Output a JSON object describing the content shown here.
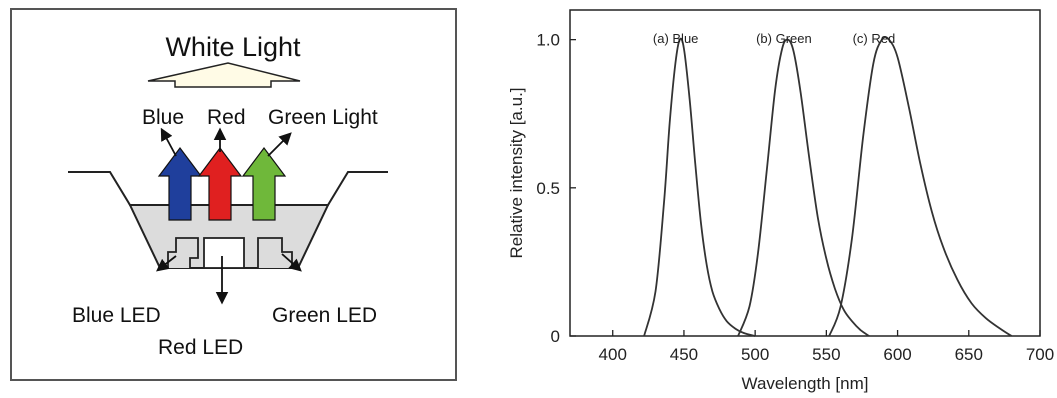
{
  "diagram": {
    "title": "White Light",
    "light_labels": [
      "Blue",
      "Red",
      "Green Light"
    ],
    "led_labels": {
      "blue": "Blue LED",
      "red": "Red LED",
      "green": "Green LED"
    },
    "colors": {
      "blue_arrow": "#1f3f9c",
      "red_arrow": "#e02020",
      "green_arrow": "#6fb83a",
      "white_arrow": "#fffbe6",
      "package_fill": "#dcdcdc",
      "panel_border": "#555555"
    }
  },
  "chart_data": {
    "type": "line",
    "title": "",
    "xlabel": "Wavelength [nm]",
    "ylabel": "Relative intensity [a.u.]",
    "xlim": [
      370,
      700
    ],
    "ylim": [
      0,
      1.1
    ],
    "xticks": [
      "400",
      "450",
      "500",
      "550",
      "600",
      "650",
      "700"
    ],
    "yticks": [
      "0",
      "0.5",
      "1.0"
    ],
    "grid": false,
    "series": [
      {
        "name": "(a) Blue",
        "x": [
          422,
          430,
          436,
          440,
          444,
          447,
          450,
          454,
          458,
          462,
          466,
          470,
          475,
          480,
          486,
          492,
          500
        ],
        "y": [
          0,
          0.15,
          0.45,
          0.72,
          0.92,
          1.0,
          0.97,
          0.8,
          0.58,
          0.38,
          0.24,
          0.15,
          0.09,
          0.05,
          0.025,
          0.01,
          0
        ]
      },
      {
        "name": "(b) Green",
        "x": [
          488,
          496,
          502,
          508,
          514,
          519,
          523,
          527,
          532,
          538,
          544,
          550,
          556,
          562,
          568,
          574,
          580
        ],
        "y": [
          0,
          0.1,
          0.28,
          0.55,
          0.83,
          0.97,
          1.0,
          0.96,
          0.82,
          0.6,
          0.4,
          0.26,
          0.16,
          0.09,
          0.05,
          0.02,
          0
        ]
      },
      {
        "name": "(c) Red",
        "x": [
          552,
          560,
          568,
          576,
          583,
          589,
          594,
          600,
          608,
          616,
          624,
          632,
          642,
          652,
          662,
          672,
          680
        ],
        "y": [
          0,
          0.1,
          0.33,
          0.68,
          0.92,
          1.0,
          1.0,
          0.94,
          0.77,
          0.58,
          0.42,
          0.3,
          0.19,
          0.11,
          0.06,
          0.025,
          0
        ]
      }
    ]
  }
}
